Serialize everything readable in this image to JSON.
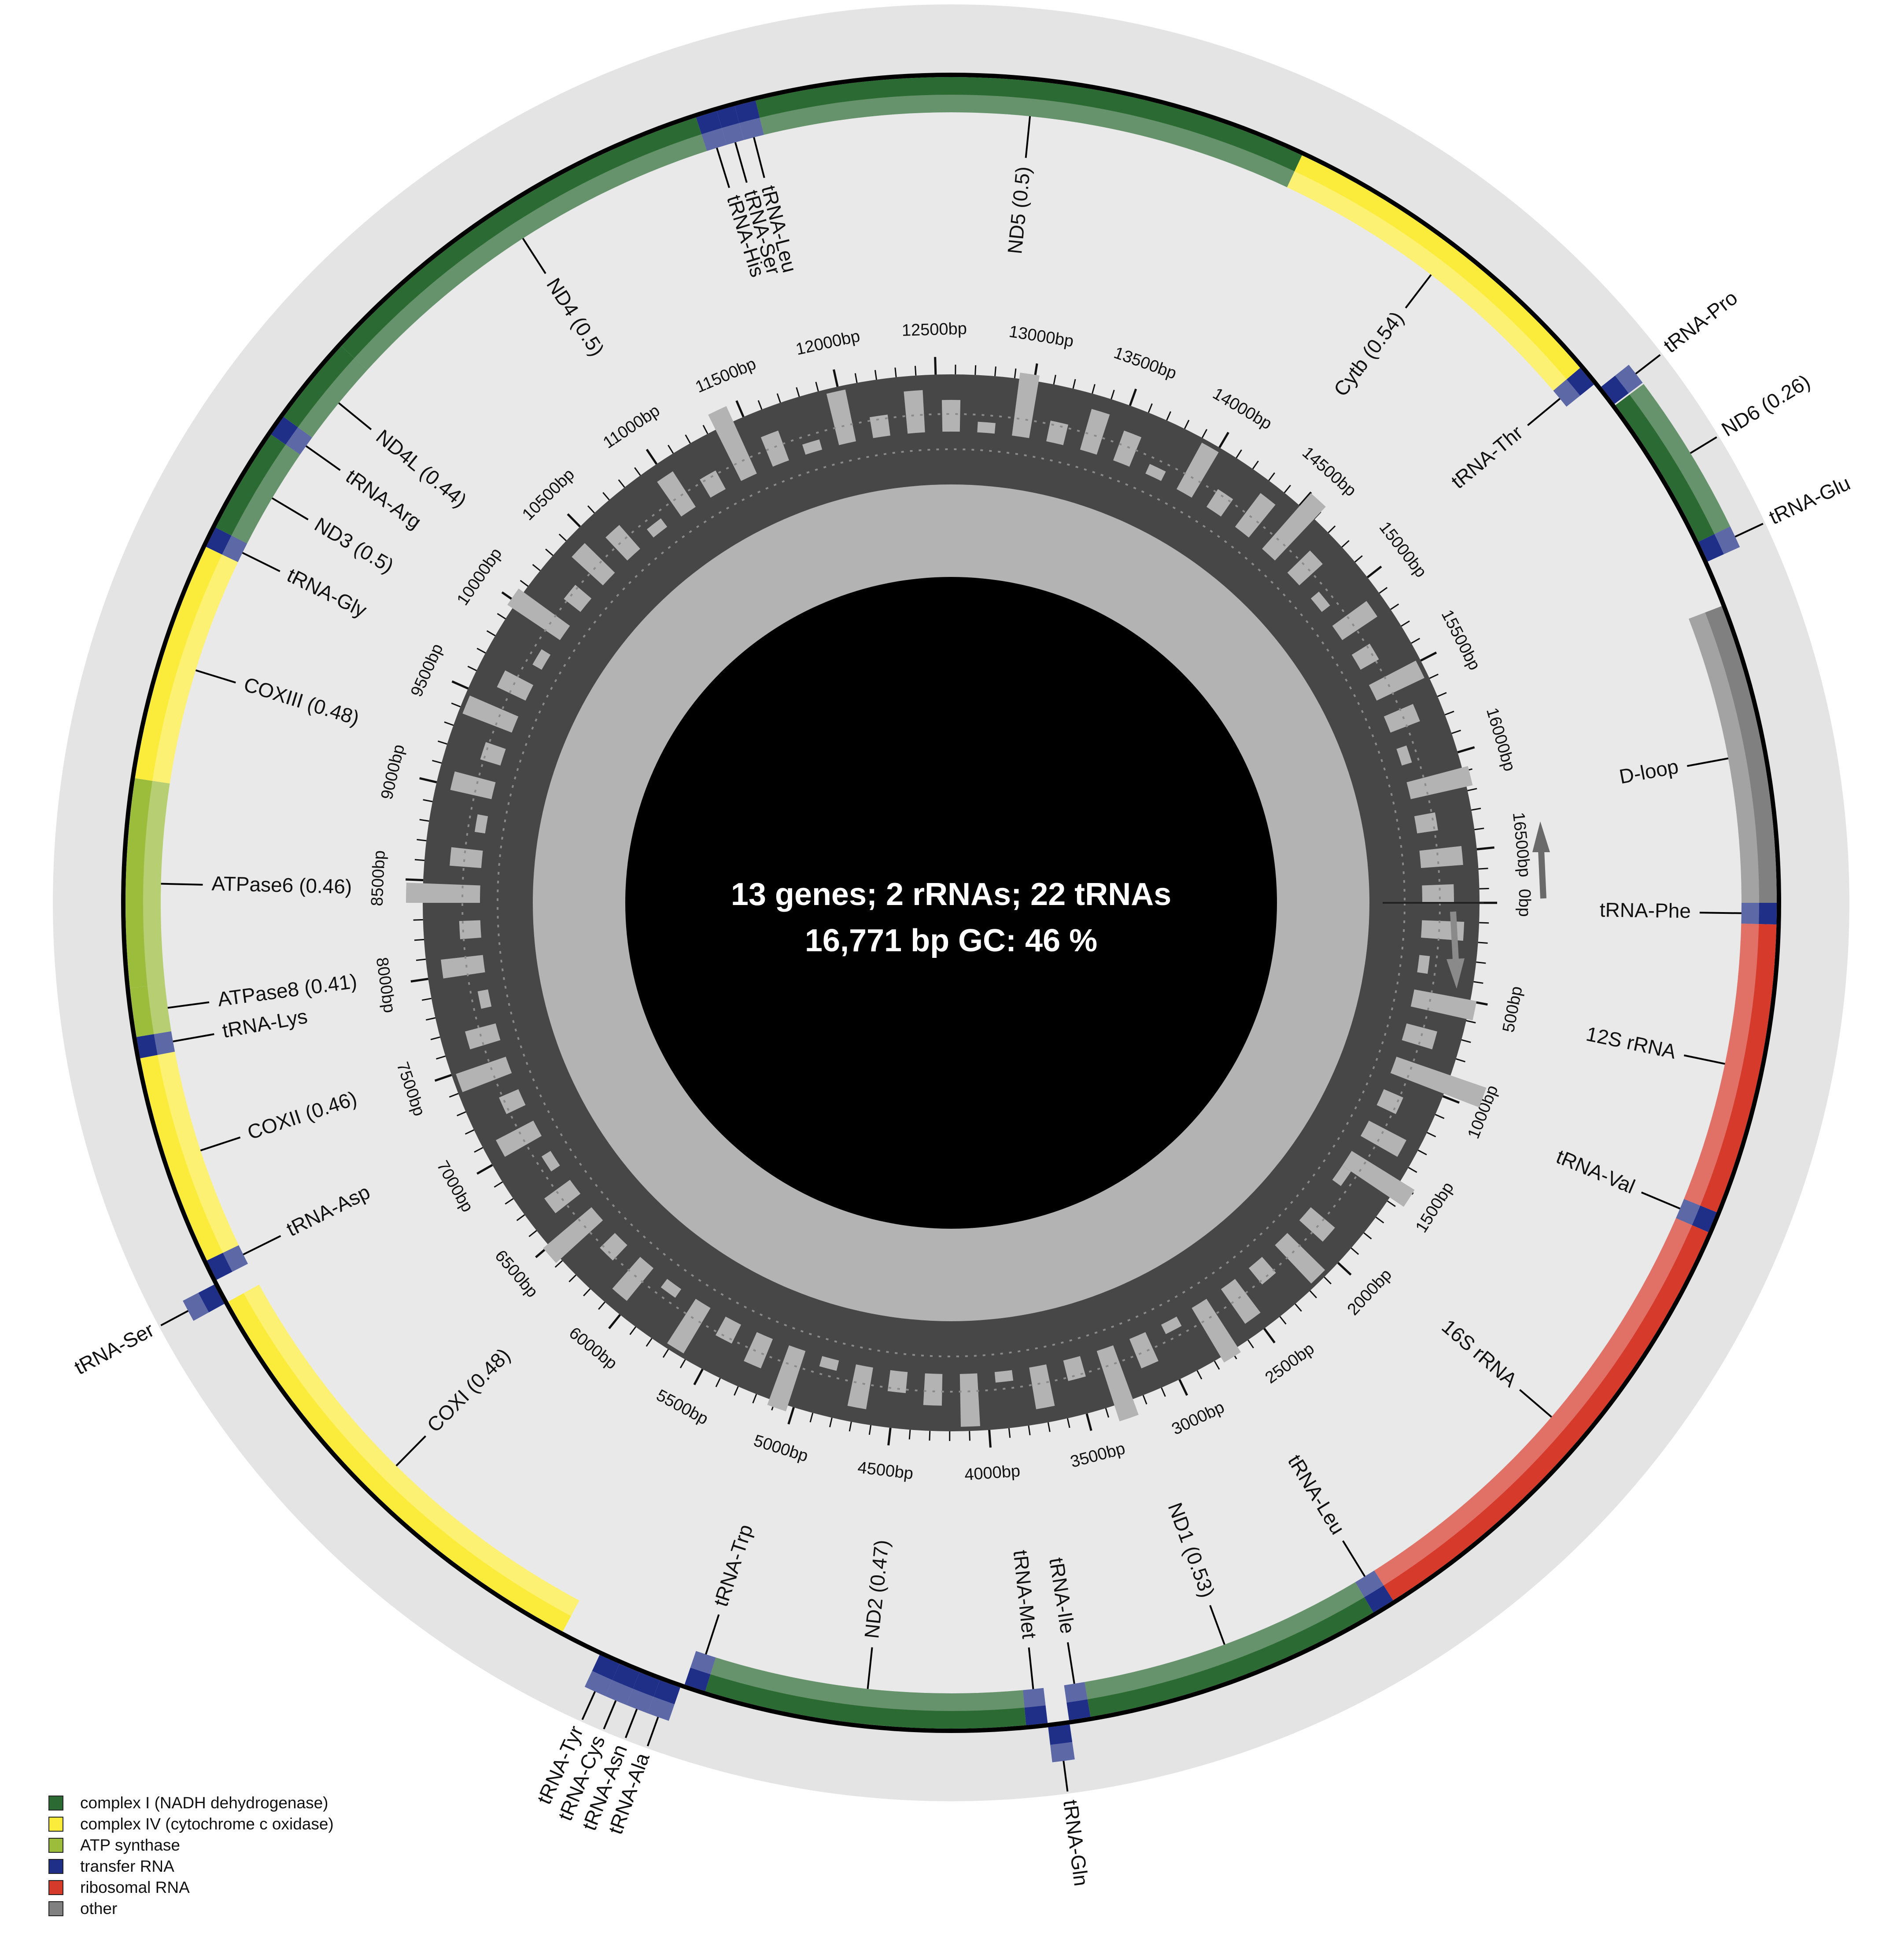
{
  "summary": {
    "line1": "13 genes; 2 rRNAs; 22 tRNAs",
    "line2": "16,771 bp GC: 46 %"
  },
  "genome_length": 16771,
  "colors": {
    "complex_I": "#2c6a33",
    "complex_IV": "#fbec3c",
    "atp": "#9cbc3c",
    "trna": "#1f2e86",
    "rrna": "#d63a2b",
    "other": "#808080",
    "outer_bg": "#e4e4e4",
    "inner_bg": "#e9e9e9",
    "gc_outer": "#474747",
    "gc_inner": "#b3b3b3",
    "center": "#000000"
  },
  "legend": [
    {
      "label": "complex I (NADH dehydrogenase)",
      "color": "#2c6a33"
    },
    {
      "label": "complex IV (cytochrome c oxidase)",
      "color": "#fbec3c"
    },
    {
      "label": "ATP synthase",
      "color": "#9cbc3c"
    },
    {
      "label": "transfer RNA",
      "color": "#1f2e86"
    },
    {
      "label": "ribosomal RNA",
      "color": "#d63a2b"
    },
    {
      "label": "other",
      "color": "#808080"
    }
  ],
  "tick_labels": [
    "0bp",
    "500bp",
    "1000bp",
    "1500bp",
    "2000bp",
    "2500bp",
    "3000bp",
    "3500bp",
    "4000bp",
    "4500bp",
    "5000bp",
    "5500bp",
    "6000bp",
    "6500bp",
    "7000bp",
    "7500bp",
    "8000bp",
    "8500bp",
    "9000bp",
    "9500bp",
    "10000bp",
    "10500bp",
    "11000bp",
    "11500bp",
    "12000bp",
    "12500bp",
    "13000bp",
    "13500bp",
    "14000bp",
    "14500bp",
    "15000bp",
    "15500bp",
    "16000bp",
    "16500bp"
  ],
  "features": [
    {
      "name": "tRNA-Phe",
      "type": "trna",
      "start": 0,
      "end": 70,
      "strand": "outer"
    },
    {
      "name": "12S rRNA",
      "type": "rrna",
      "start": 70,
      "end": 1025,
      "strand": "outer"
    },
    {
      "name": "tRNA-Val",
      "type": "trna",
      "start": 1025,
      "end": 1095,
      "strand": "outer"
    },
    {
      "name": "16S rRNA",
      "type": "rrna",
      "start": 1095,
      "end": 2685,
      "strand": "outer"
    },
    {
      "name": "tRNA-Leu",
      "type": "trna",
      "start": 2685,
      "end": 2760,
      "strand": "outer"
    },
    {
      "name": "ND1 (0.53)",
      "type": "complex_I",
      "start": 2760,
      "end": 3740,
      "strand": "outer"
    },
    {
      "name": "tRNA-Ile",
      "type": "trna",
      "start": 3740,
      "end": 3810,
      "strand": "outer"
    },
    {
      "name": "tRNA-Gln",
      "type": "trna",
      "start": 3810,
      "end": 3880,
      "strand": "inner"
    },
    {
      "name": "tRNA-Met",
      "type": "trna",
      "start": 3880,
      "end": 3950,
      "strand": "outer"
    },
    {
      "name": "ND2 (0.47)",
      "type": "complex_I",
      "start": 3950,
      "end": 5000,
      "strand": "outer"
    },
    {
      "name": "tRNA-Trp",
      "type": "trna",
      "start": 5000,
      "end": 5070,
      "strand": "outer"
    },
    {
      "name": "tRNA-Ala",
      "type": "trna",
      "start": 5080,
      "end": 5150,
      "strand": "inner"
    },
    {
      "name": "tRNA-Asn",
      "type": "trna",
      "start": 5150,
      "end": 5220,
      "strand": "inner"
    },
    {
      "name": "tRNA-Cys",
      "type": "trna",
      "start": 5220,
      "end": 5290,
      "strand": "inner"
    },
    {
      "name": "tRNA-Tyr",
      "type": "trna",
      "start": 5290,
      "end": 5360,
      "strand": "inner"
    },
    {
      "name": "COXI (0.48)",
      "type": "complex_IV",
      "start": 5500,
      "end": 7040,
      "strand": "outer"
    },
    {
      "name": "tRNA-Ser",
      "type": "trna",
      "start": 7040,
      "end": 7110,
      "strand": "inner"
    },
    {
      "name": "tRNA-Asp",
      "type": "trna",
      "start": 7120,
      "end": 7190,
      "strand": "outer"
    },
    {
      "name": "COXII (0.46)",
      "type": "complex_IV",
      "start": 7190,
      "end": 7880,
      "strand": "outer"
    },
    {
      "name": "tRNA-Lys",
      "type": "trna",
      "start": 7880,
      "end": 7950,
      "strand": "outer"
    },
    {
      "name": "ATPase8 (0.41)",
      "type": "atp",
      "start": 7950,
      "end": 8110,
      "strand": "outer"
    },
    {
      "name": "ATPase6 (0.46)",
      "type": "atp",
      "start": 8110,
      "end": 8790,
      "strand": "outer"
    },
    {
      "name": "COXIII (0.48)",
      "type": "complex_IV",
      "start": 8790,
      "end": 9575,
      "strand": "outer"
    },
    {
      "name": "tRNA-Gly",
      "type": "trna",
      "start": 9575,
      "end": 9645,
      "strand": "outer"
    },
    {
      "name": "ND3 (0.5)",
      "type": "complex_I",
      "start": 9645,
      "end": 9995,
      "strand": "outer"
    },
    {
      "name": "tRNA-Arg",
      "type": "trna",
      "start": 9995,
      "end": 10065,
      "strand": "outer"
    },
    {
      "name": "ND4L (0.44)",
      "type": "complex_I",
      "start": 10065,
      "end": 10360,
      "strand": "outer"
    },
    {
      "name": "ND4 (0.5)",
      "type": "complex_I",
      "start": 10360,
      "end": 11740,
      "strand": "outer"
    },
    {
      "name": "tRNA-His",
      "type": "trna",
      "start": 11740,
      "end": 11810,
      "strand": "outer"
    },
    {
      "name": "tRNA-Ser",
      "type": "trna",
      "start": 11810,
      "end": 11870,
      "strand": "outer"
    },
    {
      "name": "tRNA-Leu",
      "type": "trna",
      "start": 11870,
      "end": 11940,
      "strand": "outer"
    },
    {
      "name": "ND5 (0.5)",
      "type": "complex_I",
      "start": 11940,
      "end": 13750,
      "strand": "outer"
    },
    {
      "name": "Cytb (0.54)",
      "type": "complex_IV",
      "start": 13750,
      "end": 14890,
      "strand": "outer"
    },
    {
      "name": "tRNA-Thr",
      "type": "trna",
      "start": 14890,
      "end": 14960,
      "strand": "outer"
    },
    {
      "name": "tRNA-Pro",
      "type": "trna",
      "start": 14980,
      "end": 15050,
      "strand": "inner"
    },
    {
      "name": "ND6 (0.26)",
      "type": "complex_I",
      "start": 15055,
      "end": 15570,
      "strand": "inner"
    },
    {
      "name": "tRNA-Glu",
      "type": "trna",
      "start": 15570,
      "end": 15640,
      "strand": "inner"
    },
    {
      "name": "D-loop",
      "type": "other",
      "start": 15790,
      "end": 16771,
      "strand": "outer"
    }
  ],
  "gc_bins": [
    0.45,
    0.5,
    0.44,
    0.47,
    0.41,
    0.52,
    0.45,
    0.49,
    0.43,
    0.55,
    0.46,
    0.48,
    0.42,
    0.5,
    0.44,
    0.53,
    0.47,
    0.45,
    0.41,
    0.49,
    0.46,
    0.51,
    0.44,
    0.48,
    0.43,
    0.5,
    0.46,
    0.52,
    0.45,
    0.47,
    0.42,
    0.49,
    0.46,
    0.53,
    0.44,
    0.48,
    0.45,
    0.5,
    0.43,
    0.47,
    0.46,
    0.51,
    0.44,
    0.49,
    0.45,
    0.48,
    0.42,
    0.5,
    0.46,
    0.47,
    0.44,
    0.52,
    0.45,
    0.49,
    0.43,
    0.48,
    0.46,
    0.51,
    0.44,
    0.47,
    0.45,
    0.5,
    0.42,
    0.48,
    0.46,
    0.52,
    0.44,
    0.49,
    0.45,
    0.47,
    0.43,
    0.5,
    0.46,
    0.48,
    0.44,
    0.51,
    0.45,
    0.49,
    0.42,
    0.47,
    0.46,
    0.5,
    0.44,
    0.48,
    0.45,
    0.53,
    0.43,
    0.49,
    0.46,
    0.47,
    0.44,
    0.5,
    0.45,
    0.48,
    0.42,
    0.51,
    0.46,
    0.49,
    0.44,
    0.47,
    0.45,
    0.52,
    0.43,
    0.48,
    0.46,
    0.5,
    0.44,
    0.49,
    0.45,
    0.47,
    0.42,
    0.5,
    0.46,
    0.48,
    0.44,
    0.53,
    0.45,
    0.49,
    0.43,
    0.47,
    0.46,
    0.51,
    0.44,
    0.48,
    0.45,
    0.5,
    0.42,
    0.49,
    0.46,
    0.47,
    0.44,
    0.52,
    0.45,
    0.48,
    0.43,
    0.5,
    0.46,
    0.49,
    0.44,
    0.47,
    0.45,
    0.51,
    0.42,
    0.48,
    0.46,
    0.5,
    0.44,
    0.53,
    0.45,
    0.49,
    0.43,
    0.47,
    0.46,
    0.5,
    0.44,
    0.48,
    0.45,
    0.51,
    0.42,
    0.49,
    0.46,
    0.47,
    0.44,
    0.52,
    0.45,
    0.48,
    0.43,
    0.5,
    0.46,
    0.49
  ]
}
